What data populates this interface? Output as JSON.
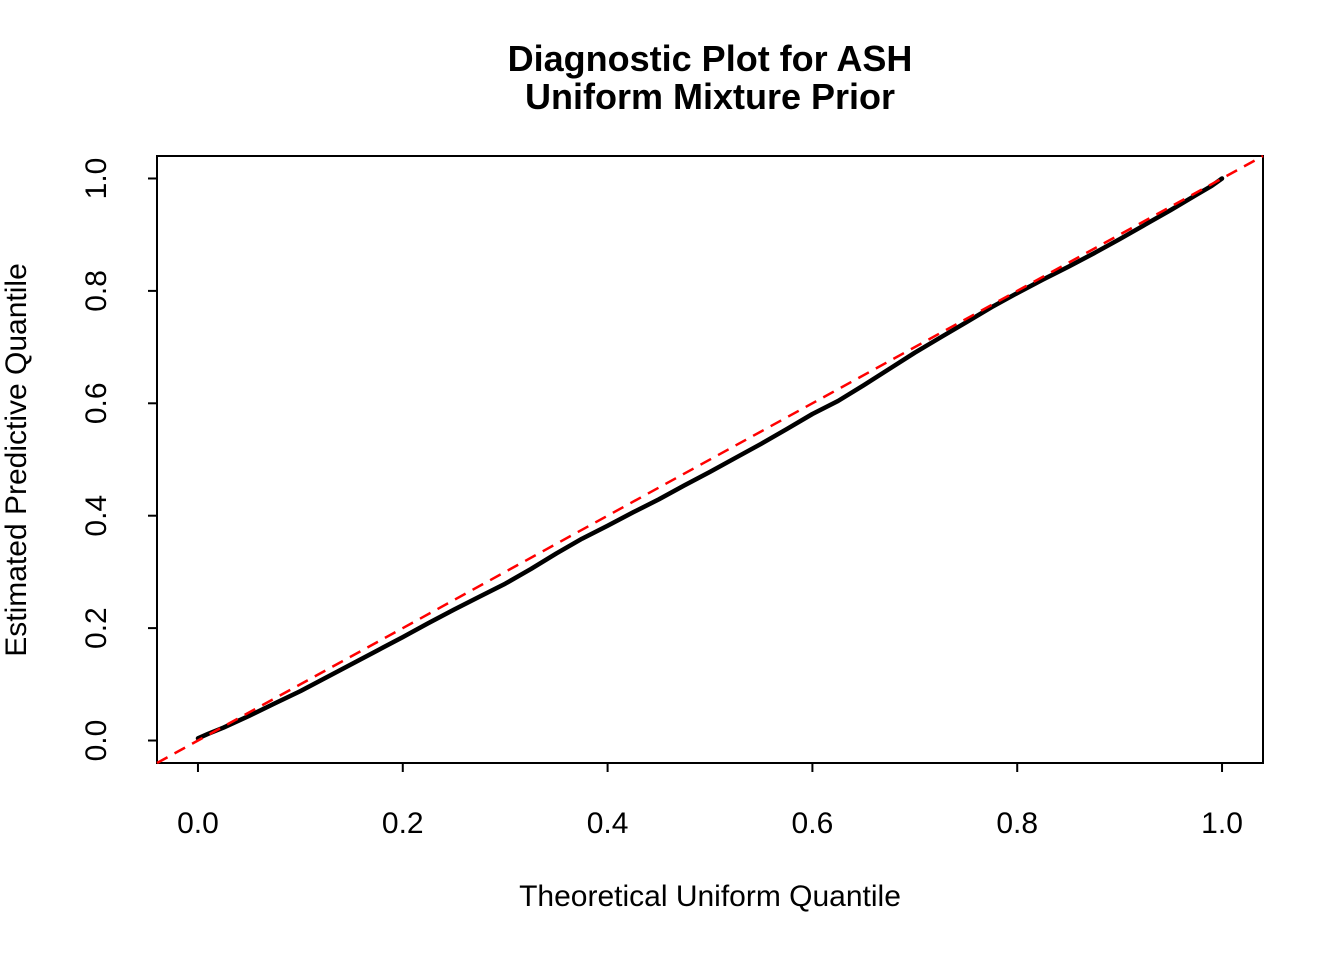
{
  "title": {
    "line1": "Diagnostic Plot for ASH",
    "line2": "Uniform Mixture Prior"
  },
  "colors": {
    "background": "#FFFFFF",
    "axis": "#000000",
    "curve": "#000000",
    "reference_line": "#FF0000"
  },
  "chart_data": {
    "type": "line",
    "title": "Diagnostic Plot for ASH\nUniform Mixture Prior",
    "xlabel": "Theoretical Uniform Quantile",
    "ylabel": "Estimated Predictive Quantile",
    "xlim": [
      -0.04,
      1.04
    ],
    "ylim": [
      -0.04,
      1.04
    ],
    "grid": false,
    "legend": "none",
    "x_ticks": [
      0.0,
      0.2,
      0.4,
      0.6,
      0.8,
      1.0
    ],
    "x_tick_labels": [
      "0.0",
      "0.2",
      "0.4",
      "0.6",
      "0.8",
      "1.0"
    ],
    "y_ticks": [
      0.0,
      0.2,
      0.4,
      0.6,
      0.8,
      1.0
    ],
    "y_tick_labels": [
      "0.0",
      "0.2",
      "0.4",
      "0.6",
      "0.8",
      "1.0"
    ],
    "reference_line": {
      "slope": 1,
      "intercept": 0,
      "style": "dashed",
      "color": "#FF0000"
    },
    "series": [
      {
        "name": "estimated-predictive-quantiles",
        "color": "#000000",
        "x": [
          0.0,
          0.01,
          0.025,
          0.05,
          0.075,
          0.1,
          0.125,
          0.15,
          0.175,
          0.2,
          0.225,
          0.25,
          0.275,
          0.3,
          0.325,
          0.35,
          0.375,
          0.4,
          0.425,
          0.45,
          0.475,
          0.5,
          0.525,
          0.55,
          0.575,
          0.6,
          0.625,
          0.65,
          0.675,
          0.7,
          0.725,
          0.75,
          0.775,
          0.8,
          0.825,
          0.85,
          0.875,
          0.9,
          0.925,
          0.95,
          0.975,
          0.99,
          1.0
        ],
        "y": [
          0.004,
          0.012,
          0.023,
          0.044,
          0.066,
          0.088,
          0.112,
          0.136,
          0.16,
          0.184,
          0.209,
          0.233,
          0.256,
          0.279,
          0.305,
          0.333,
          0.359,
          0.382,
          0.406,
          0.429,
          0.454,
          0.478,
          0.503,
          0.528,
          0.554,
          0.581,
          0.604,
          0.632,
          0.661,
          0.69,
          0.717,
          0.744,
          0.771,
          0.796,
          0.82,
          0.843,
          0.867,
          0.892,
          0.918,
          0.944,
          0.971,
          0.987,
          1.0
        ]
      }
    ]
  }
}
